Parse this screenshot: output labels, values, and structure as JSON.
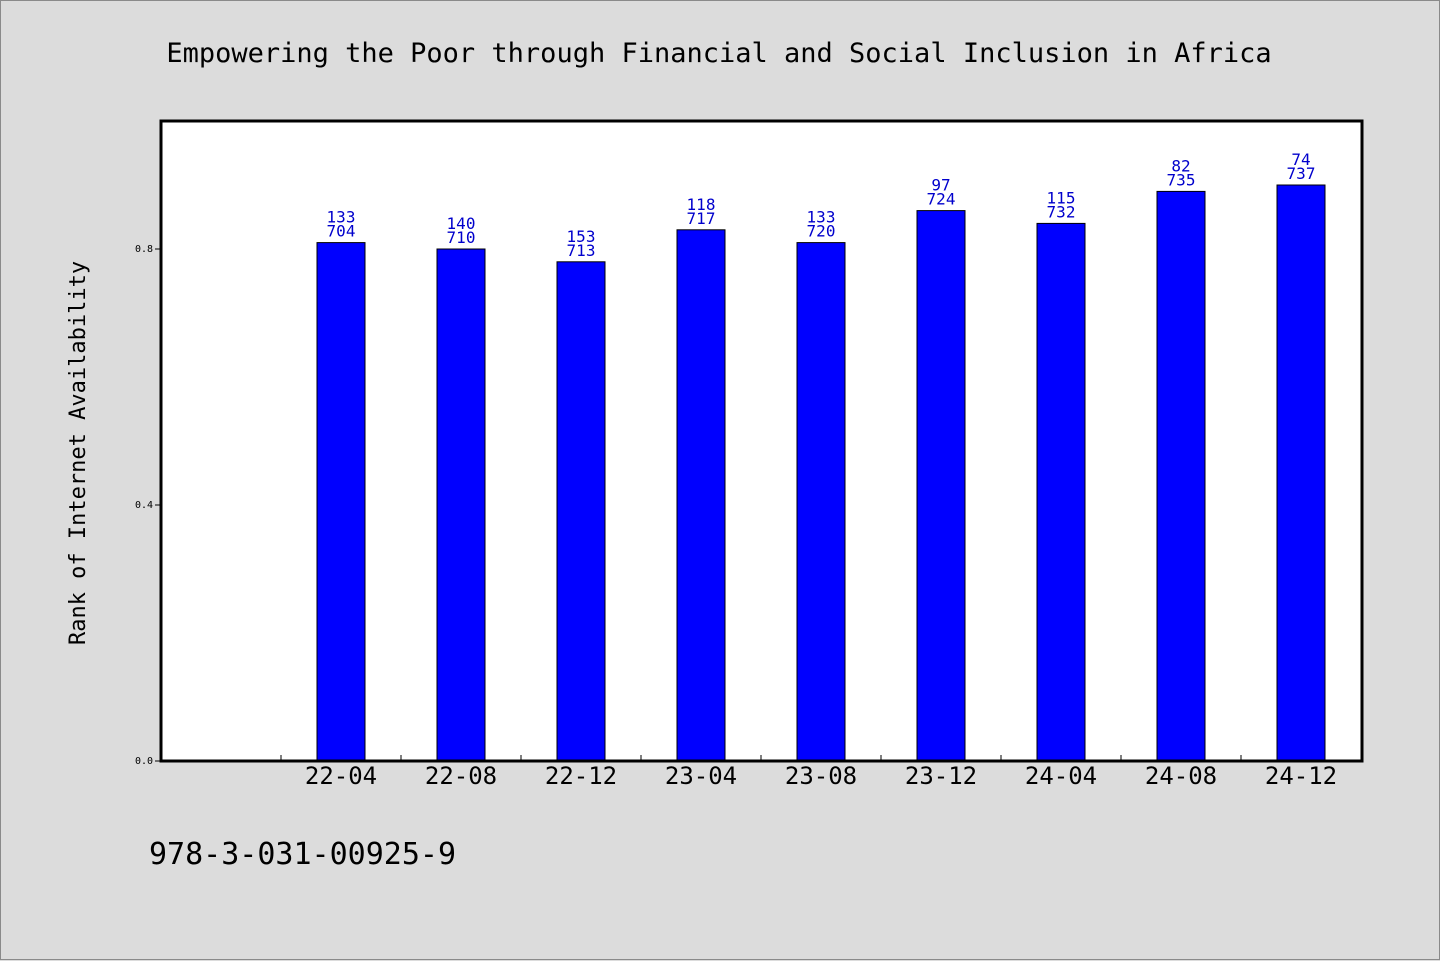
{
  "chart_data": {
    "type": "bar",
    "title": "Empowering the Poor through Financial and Social Inclusion in Africa",
    "xlabel": "",
    "ylabel": "Rank of Internet Availability",
    "ylim": [
      0,
      1.0
    ],
    "yticks": [
      0.0,
      0.4,
      0.8
    ],
    "ytick_labels": [
      "0.0",
      "0.4",
      "0.8"
    ],
    "grid": false,
    "categories": [
      "22-04",
      "22-08",
      "22-12",
      "23-04",
      "23-08",
      "23-12",
      "24-04",
      "24-08",
      "24-12"
    ],
    "values": [
      0.81,
      0.8,
      0.78,
      0.83,
      0.81,
      0.86,
      0.84,
      0.89,
      0.9
    ],
    "annotations_top": [
      "133",
      "140",
      "153",
      "118",
      "133",
      "97",
      "115",
      "82",
      "74"
    ],
    "annotations_bottom": [
      "704",
      "710",
      "713",
      "717",
      "720",
      "724",
      "732",
      "735",
      "737"
    ],
    "colors": {
      "bar": "#0000ff",
      "bar_label": "#0000cc",
      "plot_bg": "#ffffff",
      "page_bg": "#dcdcdc"
    }
  },
  "footer": {
    "text": "978-3-031-00925-9"
  }
}
